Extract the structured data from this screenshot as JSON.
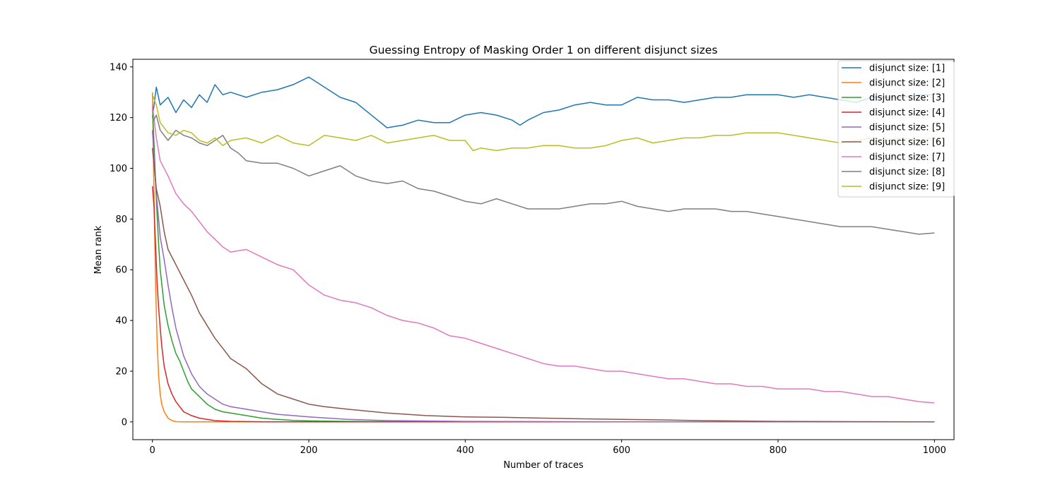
{
  "chart_data": {
    "type": "line",
    "title": "Guessing Entropy of Masking Order 1 on different disjunct sizes",
    "xlabel": "Number of traces",
    "ylabel": "Mean rank",
    "xlim": [
      -25,
      1025
    ],
    "ylim": [
      -7,
      143
    ],
    "xticks": [
      0,
      200,
      400,
      600,
      800,
      1000
    ],
    "yticks": [
      0,
      20,
      40,
      60,
      80,
      100,
      120,
      140
    ],
    "grid": false,
    "legend_position": "top-right",
    "series": [
      {
        "name": "disjunct size: [1]",
        "color": "#1f77b4",
        "x": [
          0,
          5,
          10,
          20,
          30,
          40,
          50,
          60,
          70,
          80,
          90,
          100,
          120,
          140,
          160,
          180,
          200,
          220,
          240,
          260,
          280,
          300,
          320,
          340,
          360,
          380,
          400,
          420,
          440,
          460,
          470,
          480,
          500,
          520,
          540,
          560,
          580,
          600,
          620,
          640,
          660,
          680,
          700,
          720,
          740,
          760,
          780,
          800,
          820,
          840,
          860,
          880,
          900,
          920,
          940,
          960,
          980,
          1000
        ],
        "values": [
          120,
          132,
          125,
          128,
          122,
          127,
          124,
          129,
          126,
          133,
          129,
          130,
          128,
          130,
          131,
          133,
          136,
          132,
          128,
          126,
          121,
          116,
          117,
          119,
          118,
          118,
          121,
          122,
          121,
          119,
          117,
          119,
          122,
          123,
          125,
          126,
          125,
          125,
          128,
          127,
          127,
          126,
          127,
          128,
          128,
          129,
          129,
          129,
          128,
          129,
          128,
          127,
          126,
          128,
          128,
          128,
          129,
          129
        ]
      },
      {
        "name": "disjunct size: [2]",
        "color": "#ff7f0e",
        "x": [
          0,
          2,
          4,
          6,
          8,
          10,
          12,
          15,
          20,
          25,
          30,
          40,
          60,
          100,
          200,
          400,
          600,
          800,
          1000
        ],
        "values": [
          130,
          90,
          55,
          32,
          18,
          11,
          7,
          4,
          1.5,
          0.5,
          0.1,
          0,
          0,
          0,
          0,
          0,
          0,
          0,
          0
        ]
      },
      {
        "name": "disjunct size: [3]",
        "color": "#2ca02c",
        "x": [
          0,
          2,
          4,
          6,
          8,
          10,
          15,
          20,
          25,
          30,
          35,
          40,
          45,
          50,
          60,
          70,
          80,
          90,
          100,
          120,
          140,
          160,
          180,
          200,
          250,
          300,
          400,
          600,
          800,
          1000
        ],
        "values": [
          125,
          110,
          95,
          82,
          70,
          60,
          46,
          38,
          32,
          27,
          24,
          20,
          16,
          13,
          10,
          7,
          5,
          4,
          3.5,
          2.5,
          1.5,
          1,
          0.6,
          0.4,
          0.2,
          0.1,
          0,
          0,
          0,
          0
        ]
      },
      {
        "name": "disjunct size: [4]",
        "color": "#d62728",
        "x": [
          0,
          2,
          4,
          6,
          8,
          10,
          12,
          15,
          20,
          25,
          30,
          35,
          40,
          50,
          60,
          70,
          80,
          100,
          150,
          200,
          300,
          400,
          600,
          800,
          1000
        ],
        "values": [
          93,
          85,
          70,
          55,
          45,
          37,
          30,
          22,
          15,
          11,
          8,
          6,
          4,
          2.5,
          1.5,
          1,
          0.5,
          0.2,
          0,
          0,
          0,
          0,
          0,
          0,
          0
        ]
      },
      {
        "name": "disjunct size: [5]",
        "color": "#9467bd",
        "x": [
          0,
          5,
          10,
          15,
          20,
          25,
          30,
          40,
          50,
          60,
          70,
          80,
          90,
          100,
          120,
          140,
          160,
          180,
          200,
          250,
          300,
          400,
          600,
          800,
          1000
        ],
        "values": [
          115,
          90,
          73,
          64,
          54,
          45,
          37,
          26,
          19,
          14,
          11,
          9,
          7,
          6,
          5,
          4,
          3,
          2.5,
          2,
          1,
          0.5,
          0.2,
          0,
          0,
          0
        ]
      },
      {
        "name": "disjunct size: [6]",
        "color": "#8c564b",
        "x": [
          0,
          5,
          10,
          15,
          20,
          30,
          40,
          50,
          60,
          70,
          80,
          90,
          100,
          110,
          120,
          140,
          160,
          180,
          200,
          220,
          250,
          300,
          350,
          400,
          450,
          500,
          550,
          600,
          650,
          700,
          800,
          900,
          1000
        ],
        "values": [
          108,
          92,
          85,
          75,
          68,
          62,
          56,
          50,
          43,
          38,
          33,
          29,
          25,
          23,
          21,
          15,
          11,
          9,
          7,
          6,
          5,
          3.5,
          2.5,
          2,
          1.8,
          1.5,
          1.2,
          1,
          0.8,
          0.5,
          0.2,
          0.1,
          0
        ]
      },
      {
        "name": "disjunct size: [7]",
        "color": "#e377c2",
        "x": [
          0,
          5,
          10,
          20,
          30,
          40,
          50,
          60,
          70,
          80,
          90,
          100,
          120,
          140,
          160,
          180,
          200,
          220,
          240,
          260,
          280,
          300,
          320,
          340,
          360,
          380,
          400,
          420,
          440,
          460,
          480,
          500,
          520,
          540,
          560,
          580,
          600,
          620,
          640,
          660,
          680,
          700,
          720,
          740,
          760,
          780,
          800,
          820,
          840,
          860,
          880,
          900,
          920,
          940,
          960,
          980,
          1000
        ],
        "values": [
          125,
          112,
          103,
          97,
          90,
          86,
          83,
          79,
          75,
          72,
          69,
          67,
          68,
          65,
          62,
          60,
          54,
          50,
          48,
          47,
          45,
          42,
          40,
          39,
          37,
          34,
          33,
          31,
          29,
          27,
          25,
          23,
          22,
          22,
          21,
          20,
          20,
          19,
          18,
          17,
          17,
          16,
          15,
          15,
          14,
          14,
          13,
          13,
          13,
          12,
          12,
          11,
          10,
          10,
          9,
          8,
          7.5
        ]
      },
      {
        "name": "disjunct size: [8]",
        "color": "#7f7f7f",
        "x": [
          0,
          5,
          10,
          20,
          30,
          40,
          50,
          60,
          70,
          80,
          90,
          100,
          110,
          120,
          140,
          160,
          180,
          200,
          220,
          240,
          260,
          280,
          300,
          320,
          340,
          360,
          380,
          400,
          420,
          440,
          460,
          480,
          500,
          520,
          540,
          560,
          580,
          600,
          620,
          640,
          660,
          680,
          700,
          720,
          740,
          760,
          780,
          800,
          820,
          840,
          860,
          880,
          900,
          920,
          940,
          960,
          980,
          1000
        ],
        "values": [
          118,
          121,
          115,
          111,
          115,
          113,
          112,
          110,
          109,
          111,
          113,
          108,
          106,
          103,
          102,
          102,
          100,
          97,
          99,
          101,
          97,
          95,
          94,
          95,
          92,
          91,
          89,
          87,
          86,
          88,
          86,
          84,
          84,
          84,
          85,
          86,
          86,
          87,
          85,
          84,
          83,
          84,
          84,
          84,
          83,
          83,
          82,
          81,
          80,
          79,
          78,
          77,
          77,
          77,
          76,
          75,
          74,
          74.5
        ]
      },
      {
        "name": "disjunct size: [9]",
        "color": "#bcbd22",
        "x": [
          0,
          5,
          10,
          20,
          30,
          40,
          50,
          60,
          70,
          80,
          90,
          100,
          120,
          140,
          160,
          180,
          200,
          220,
          240,
          260,
          280,
          300,
          320,
          340,
          360,
          380,
          400,
          410,
          420,
          440,
          460,
          480,
          500,
          520,
          540,
          560,
          580,
          600,
          620,
          640,
          660,
          680,
          700,
          720,
          740,
          760,
          780,
          800,
          820,
          840,
          860,
          880,
          900,
          920,
          940,
          960,
          980,
          1000
        ],
        "values": [
          129,
          125,
          118,
          114,
          113,
          115,
          114,
          111,
          110,
          112,
          109,
          111,
          112,
          110,
          113,
          110,
          109,
          113,
          112,
          111,
          113,
          110,
          111,
          112,
          113,
          111,
          111,
          107,
          108,
          107,
          108,
          108,
          109,
          109,
          108,
          108,
          109,
          111,
          112,
          110,
          111,
          112,
          112,
          113,
          113,
          114,
          114,
          114,
          113,
          112,
          111,
          110,
          111,
          112,
          111,
          112,
          111,
          112
        ]
      }
    ]
  }
}
